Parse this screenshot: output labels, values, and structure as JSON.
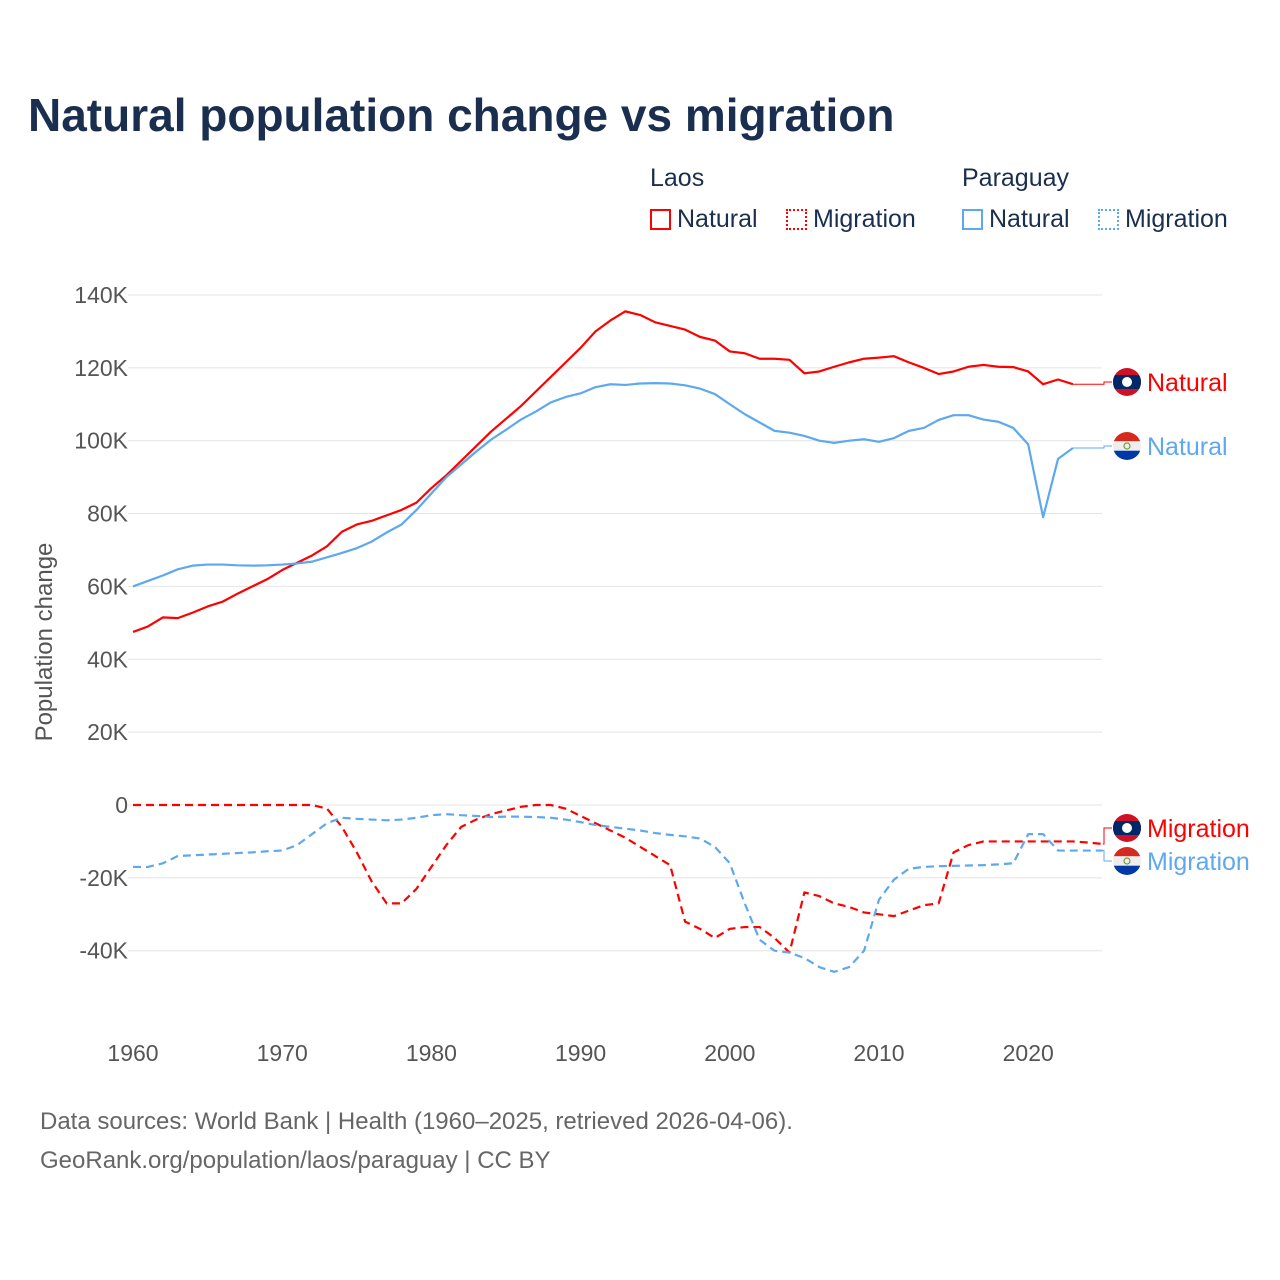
{
  "title": "Natural population change vs migration",
  "legend": {
    "groups": [
      {
        "name": "Laos",
        "color": "#ff0000",
        "items": [
          "Natural",
          "Migration"
        ]
      },
      {
        "name": "Paraguay",
        "color": "#5ea8ee",
        "items": [
          "Natural",
          "Migration"
        ]
      }
    ]
  },
  "footer": {
    "line1": "Data sources: World Bank | Health (1960–2025, retrieved 2026-04-06).",
    "line2": "GeoRank.org/population/laos/paraguay | CC BY"
  },
  "chart_data": {
    "type": "line",
    "title": "Natural population change vs migration",
    "xlabel": "",
    "ylabel": "Population change",
    "xlim": [
      1960,
      2025
    ],
    "ylim": [
      -55000,
      145000
    ],
    "x_ticks": [
      1960,
      1970,
      1980,
      1990,
      2000,
      2010,
      2020
    ],
    "x_tick_labels": [
      "1960",
      "1970",
      "1980",
      "1990",
      "2000",
      "2010",
      "2020"
    ],
    "y_ticks": [
      -40000,
      -20000,
      0,
      20000,
      40000,
      60000,
      80000,
      100000,
      120000,
      140000
    ],
    "y_tick_labels": [
      "-40K",
      "-20K",
      "0",
      "20K",
      "40K",
      "60K",
      "80K",
      "100K",
      "120K",
      "140K"
    ],
    "grid": true,
    "legend_placement": "top-right",
    "series": [
      {
        "name": "Laos Natural",
        "label": "Natural",
        "color": "#ff0000",
        "dash": false,
        "start": 1960,
        "values": [
          47500,
          49000,
          51500,
          51300,
          52800,
          54500,
          55800,
          58000,
          60000,
          62000,
          64500,
          66500,
          68500,
          71000,
          75000,
          77000,
          78000,
          79500,
          81000,
          83000,
          87000,
          90500,
          94500,
          98500,
          102500,
          106000,
          109500,
          113500,
          117500,
          121500,
          125500,
          130000,
          133000,
          135500,
          134500,
          132500,
          131500,
          130500,
          128500,
          127500,
          124500,
          124000,
          122500,
          122500,
          122200,
          118500,
          119000,
          120300,
          121500,
          122500,
          122800,
          123200,
          121500,
          120000,
          118300,
          119000,
          120300,
          120800,
          120300,
          120200,
          119000,
          115500,
          116800,
          115500
        ]
      },
      {
        "name": "Paraguay Natural",
        "label": "Natural",
        "color": "#5ea8ee",
        "dash": false,
        "start": 1960,
        "values": [
          60000,
          61500,
          63000,
          64700,
          65700,
          66000,
          66000,
          65800,
          65700,
          65800,
          66000,
          66300,
          66800,
          68000,
          69200,
          70500,
          72300,
          74800,
          77000,
          81000,
          85500,
          90000,
          93500,
          97000,
          100300,
          103000,
          105800,
          108000,
          110500,
          112000,
          113000,
          114700,
          115500,
          115300,
          115700,
          115800,
          115700,
          115200,
          114300,
          112800,
          110000,
          107300,
          105000,
          102700,
          102200,
          101300,
          100000,
          99400,
          100000,
          100400,
          99700,
          100700,
          102700,
          103500,
          105700,
          107000,
          107000,
          105800,
          105200,
          103500,
          99000,
          79000,
          95000,
          98000
        ]
      },
      {
        "name": "Laos Migration",
        "label": "Migration",
        "color": "#ff0000",
        "dash": true,
        "start": 1960,
        "values": [
          0,
          0,
          0,
          0,
          0,
          0,
          0,
          0,
          0,
          0,
          0,
          0,
          0,
          -1000,
          -6000,
          -13000,
          -21000,
          -27000,
          -27000,
          -23000,
          -17000,
          -11000,
          -6000,
          -4000,
          -2500,
          -1500,
          -500,
          0,
          0,
          -1000,
          -3000,
          -5000,
          -7000,
          -9000,
          -11500,
          -14000,
          -16500,
          -32000,
          -34000,
          -36500,
          -34000,
          -33500,
          -33500,
          -36500,
          -40500,
          -24000,
          -25000,
          -27000,
          -28000,
          -29500,
          -30000,
          -30500,
          -29000,
          -27500,
          -27000,
          -13000,
          -11000,
          -10000,
          -10000,
          -10000,
          -10000,
          -10000,
          -10000,
          -10000,
          -10300,
          -10700
        ]
      },
      {
        "name": "Paraguay Migration",
        "label": "Migration",
        "color": "#5ea8ee",
        "dash": true,
        "start": 1960,
        "values": [
          -17000,
          -17000,
          -16000,
          -14000,
          -13800,
          -13600,
          -13400,
          -13200,
          -13000,
          -12700,
          -12500,
          -11000,
          -8000,
          -5000,
          -3500,
          -3800,
          -4000,
          -4200,
          -4000,
          -3500,
          -2800,
          -2500,
          -2800,
          -3000,
          -3300,
          -3200,
          -3200,
          -3300,
          -3500,
          -4000,
          -4700,
          -5500,
          -6000,
          -6500,
          -7000,
          -7700,
          -8200,
          -8600,
          -9200,
          -11500,
          -16000,
          -27000,
          -37000,
          -40000,
          -40500,
          -42000,
          -44500,
          -45800,
          -44500,
          -40000,
          -26000,
          -20500,
          -17500,
          -17000,
          -16800,
          -16700,
          -16600,
          -16500,
          -16300,
          -16000,
          -8000,
          -8000,
          -12500,
          -12500,
          -12500,
          -12500
        ]
      }
    ]
  }
}
